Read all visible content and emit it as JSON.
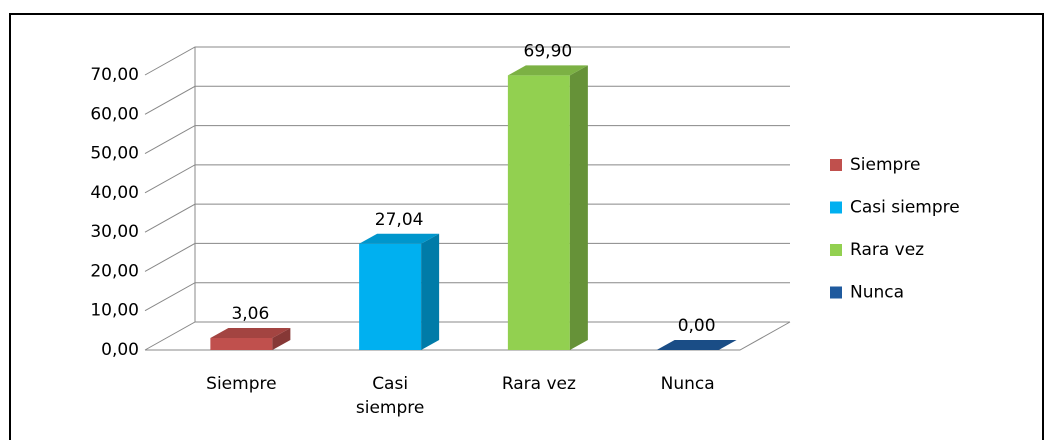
{
  "chart_data": {
    "type": "bar3d",
    "categories": [
      "Siempre",
      "Casi siempre",
      "Rara vez",
      "Nunca"
    ],
    "values": [
      3.06,
      27.04,
      69.9,
      0.0
    ],
    "value_labels": [
      "3,06",
      "27,04",
      "69,90",
      "0,00"
    ],
    "colors": [
      "#c0504d",
      "#00b0f0",
      "#92d050",
      "#1f5a9e"
    ],
    "ylim": [
      0,
      70
    ],
    "yticks": [
      {
        "value": 0,
        "label": "0,00"
      },
      {
        "value": 10,
        "label": "10,00"
      },
      {
        "value": 20,
        "label": "20,00"
      },
      {
        "value": 30,
        "label": "30,00"
      },
      {
        "value": 40,
        "label": "40,00"
      },
      {
        "value": 50,
        "label": "50,00"
      },
      {
        "value": 60,
        "label": "60,00"
      },
      {
        "value": 70,
        "label": "70,00"
      }
    ],
    "grid": true,
    "legend": "right"
  }
}
